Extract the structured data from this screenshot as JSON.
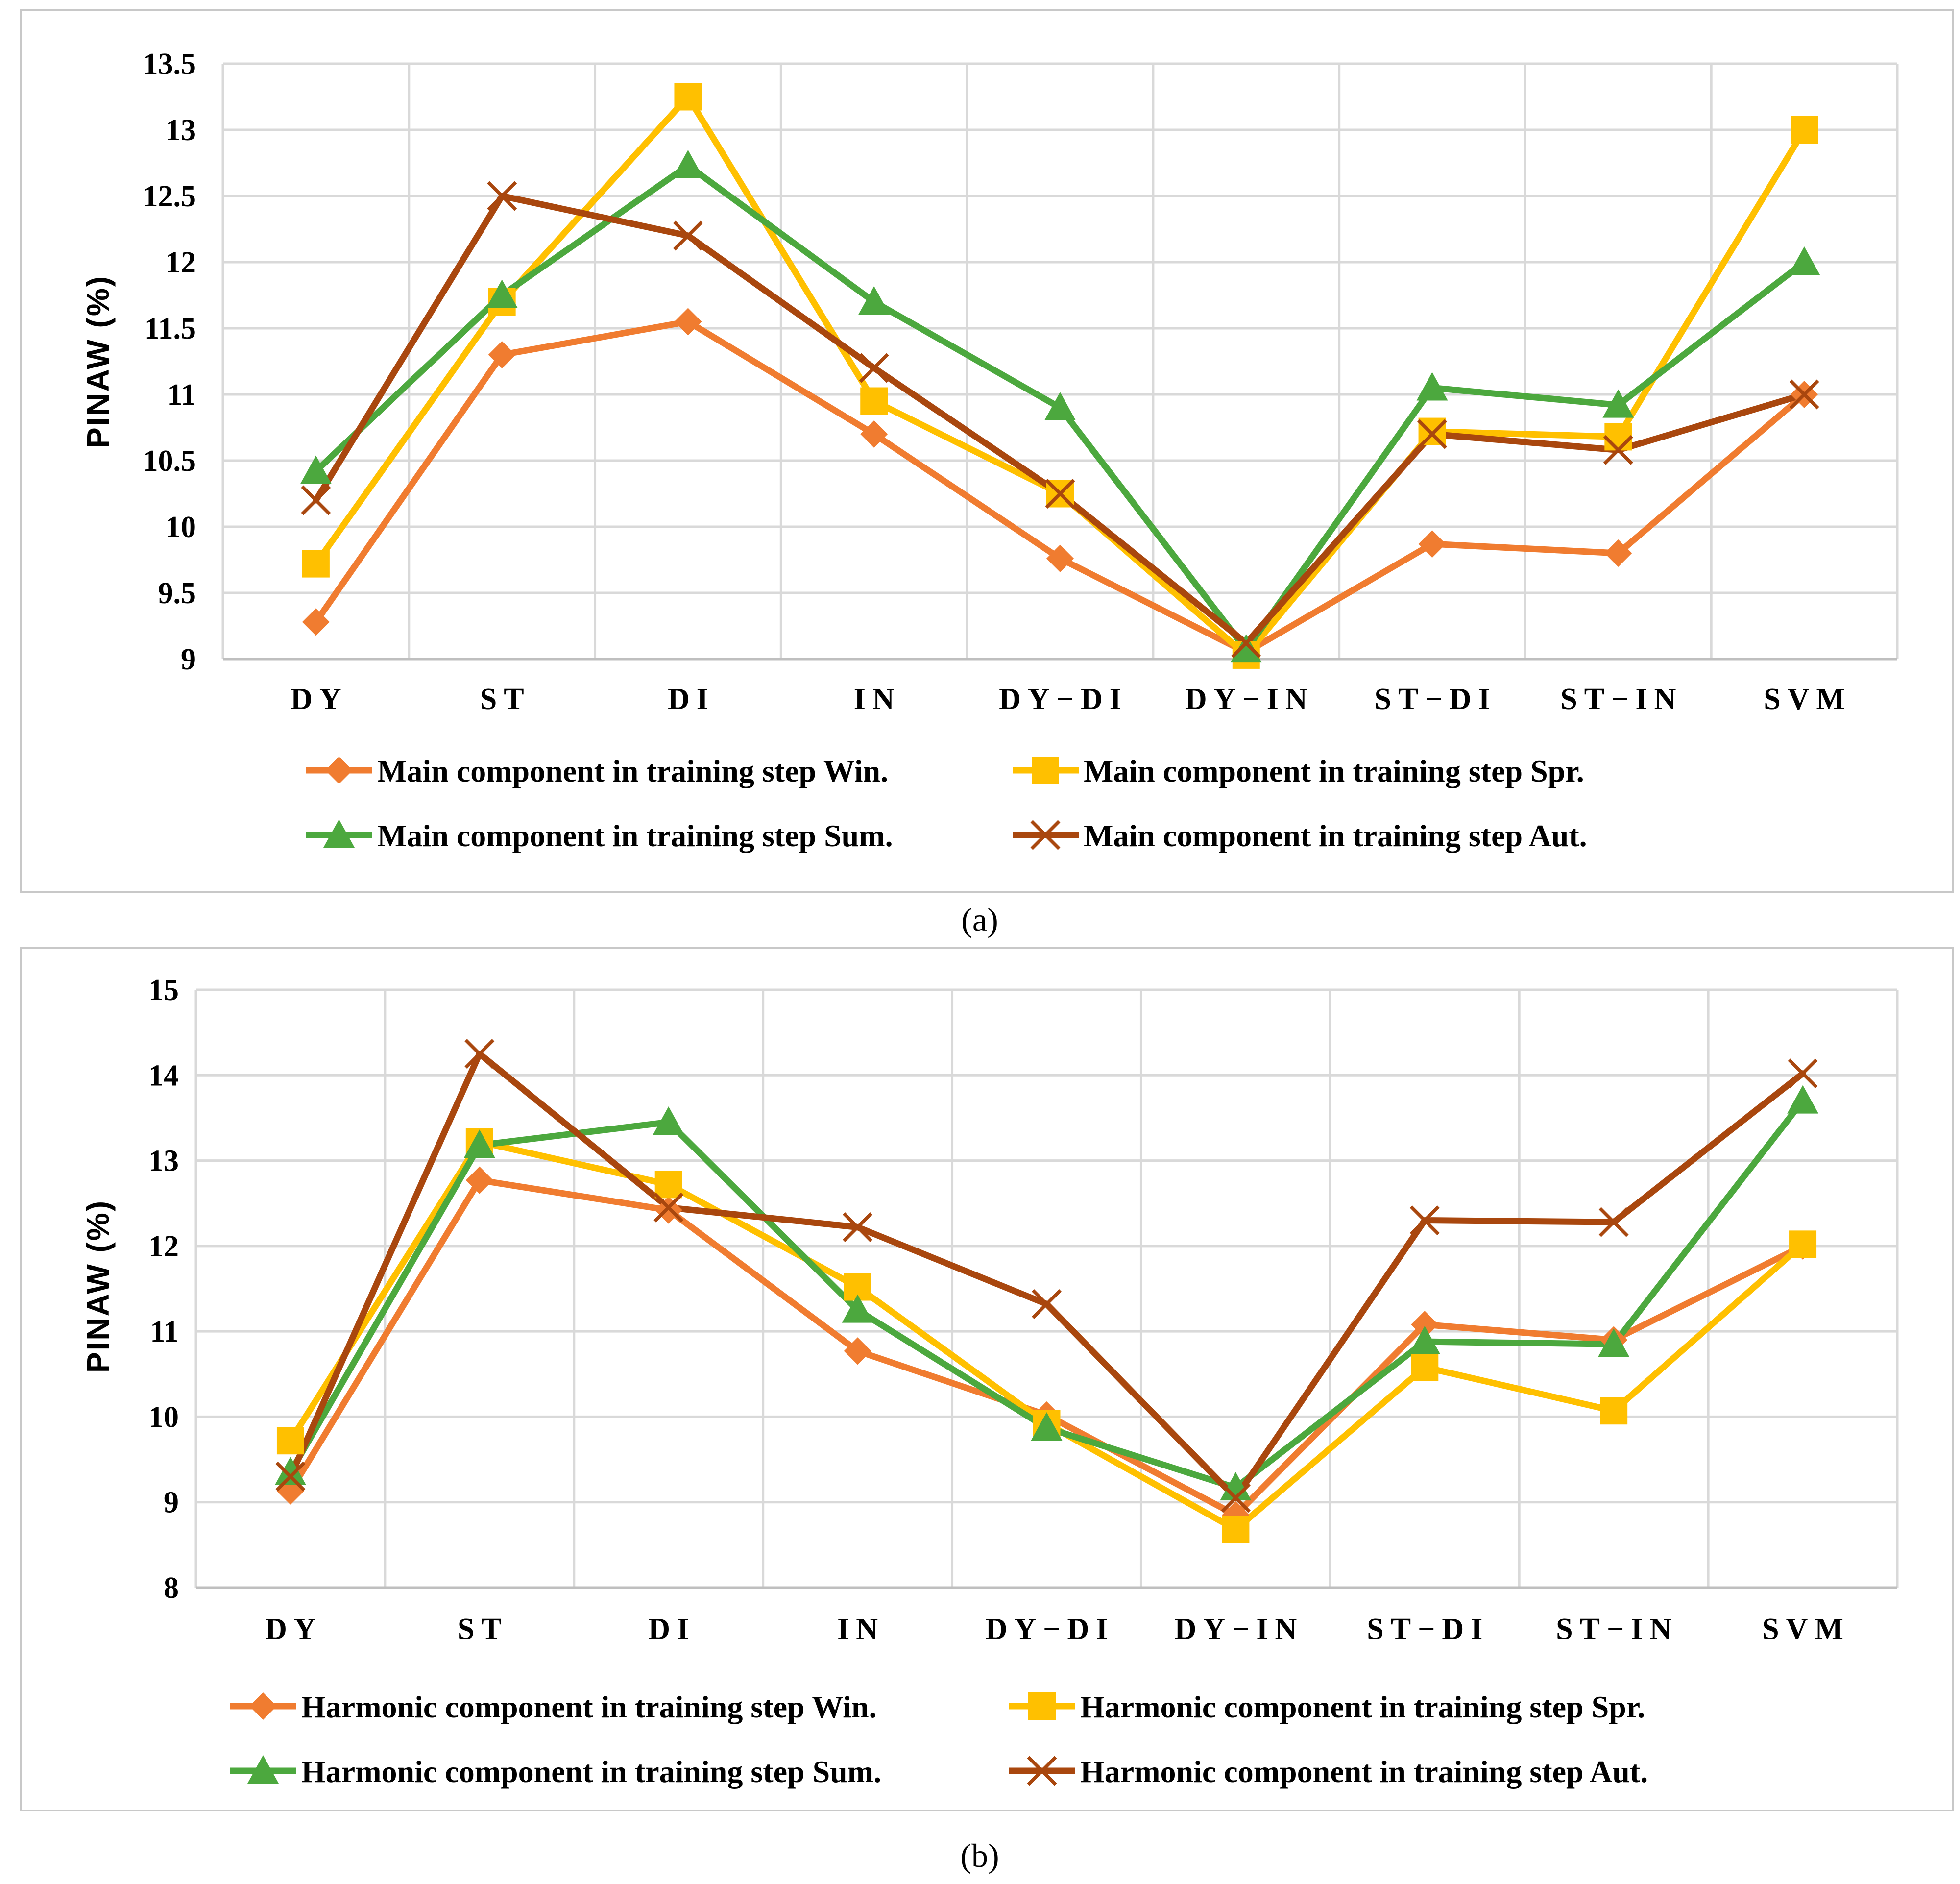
{
  "chart_data": [
    {
      "id": "a",
      "type": "line",
      "caption": "(a)",
      "ylabel": "PINAW  (%)",
      "ylim": [
        9,
        13.5
      ],
      "ytick_step": 0.5,
      "yticks": [
        "9",
        "9.5",
        "10",
        "10.5",
        "11",
        "11.5",
        "12",
        "12.5",
        "13",
        "13.5"
      ],
      "categories": [
        "DY",
        "ST",
        "DI",
        "IN",
        "DY−DI",
        "DY−IN",
        "ST−DI",
        "ST−IN",
        "SVM"
      ],
      "grid": true,
      "legend_position": "bottom",
      "series": [
        {
          "name": "Main component in training step Win.",
          "color": "#F07C30",
          "marker": "diamond",
          "values": [
            9.28,
            11.3,
            11.55,
            10.7,
            9.76,
            9.05,
            9.87,
            9.8,
            11.0
          ]
        },
        {
          "name": "Main component in training step Spr.",
          "color": "#FFC000",
          "marker": "square",
          "values": [
            9.72,
            11.7,
            13.25,
            10.95,
            10.25,
            9.03,
            10.72,
            10.68,
            13.0
          ]
        },
        {
          "name": "Main component in training step Sum.",
          "color": "#4CA83E",
          "marker": "triangle",
          "values": [
            10.42,
            11.75,
            12.73,
            11.7,
            10.9,
            9.07,
            11.05,
            10.92,
            12.0
          ]
        },
        {
          "name": "Main component in training step Aut.",
          "color": "#A9470E",
          "marker": "x",
          "values": [
            10.2,
            12.5,
            12.2,
            11.2,
            10.25,
            9.12,
            10.7,
            10.58,
            11.0
          ]
        }
      ]
    },
    {
      "id": "b",
      "type": "line",
      "caption": "(b)",
      "ylabel": "PINAW  (%)",
      "ylim": [
        8,
        15
      ],
      "ytick_step": 1,
      "yticks": [
        "8",
        "9",
        "10",
        "11",
        "12",
        "13",
        "14",
        "15"
      ],
      "categories": [
        "DY",
        "ST",
        "DI",
        "IN",
        "DY−DI",
        "DY−IN",
        "ST−DI",
        "ST−IN",
        "SVM"
      ],
      "grid": true,
      "legend_position": "bottom",
      "series": [
        {
          "name": "Harmonic component in training step Win.",
          "color": "#F07C30",
          "marker": "diamond",
          "values": [
            9.13,
            12.77,
            12.42,
            10.77,
            10.02,
            8.85,
            11.08,
            10.9,
            12.0
          ]
        },
        {
          "name": "Harmonic component in training step Spr.",
          "color": "#FFC000",
          "marker": "square",
          "values": [
            9.72,
            13.22,
            12.72,
            11.52,
            9.92,
            8.68,
            10.58,
            10.07,
            12.02
          ]
        },
        {
          "name": "Harmonic component in training step Sum.",
          "color": "#4CA83E",
          "marker": "triangle",
          "values": [
            9.35,
            13.18,
            13.45,
            11.25,
            9.87,
            9.17,
            10.88,
            10.85,
            13.7
          ]
        },
        {
          "name": "Harmonic component in training step Aut.",
          "color": "#A9470E",
          "marker": "x",
          "values": [
            9.3,
            14.25,
            12.45,
            12.22,
            11.32,
            9.05,
            12.3,
            12.28,
            14.02
          ]
        }
      ]
    }
  ]
}
